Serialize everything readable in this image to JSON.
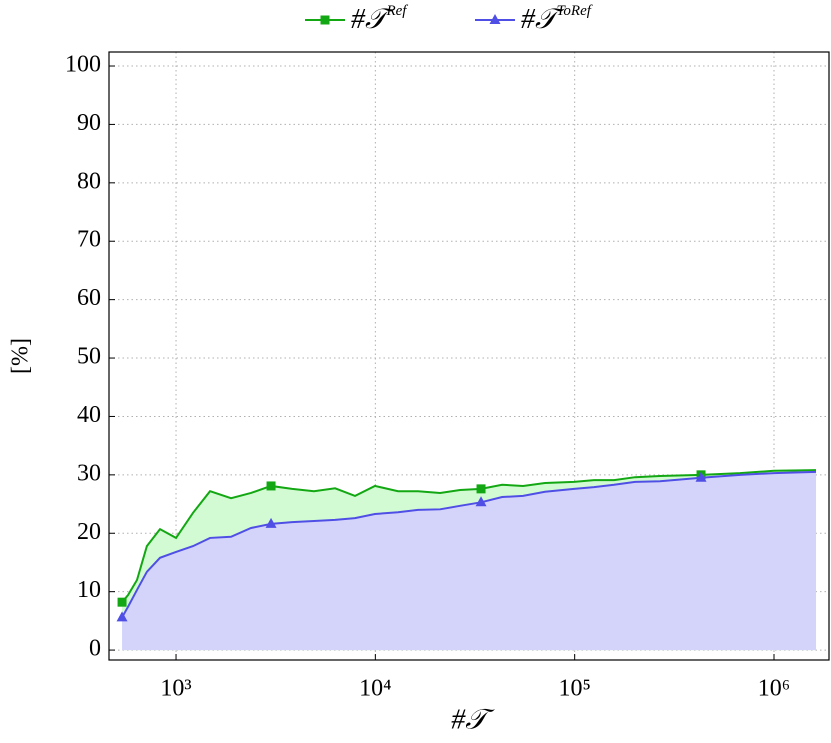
{
  "chart_data": {
    "type": "area_line",
    "x_label": "#𝒯",
    "y_label": "[%]",
    "xscale": "log",
    "grid": true,
    "legend": "top",
    "xlim": [
      461,
      1888000
    ],
    "ylim": [
      -1.7,
      102.4
    ],
    "xticks": [
      {
        "value": 1000,
        "label": "10³"
      },
      {
        "value": 10000,
        "label": "10⁴"
      },
      {
        "value": 100000,
        "label": "10⁵"
      },
      {
        "value": 1000000,
        "label": "10⁶"
      }
    ],
    "yticks": [
      0,
      10,
      20,
      30,
      40,
      50,
      60,
      70,
      80,
      90,
      100
    ],
    "x": [
      536,
      574,
      637,
      714,
      831,
      1000,
      1217,
      1481,
      1888,
      2378,
      2997,
      3822,
      4921,
      6281,
      7907,
      9950,
      13000,
      16370,
      21130,
      26610,
      33900,
      43250,
      55080,
      71000,
      99300,
      125000,
      157700,
      200900,
      268000,
      430500,
      676000,
      1000000,
      1625000
    ],
    "series": [
      {
        "name": "#𝒯",
        "name_sup": "Ref",
        "color": "#13a813",
        "fill": "#d3fbd3",
        "marker": "square",
        "marker_indices": [
          0,
          10,
          20,
          29
        ],
        "values": [
          8.2,
          9.4,
          12,
          17.8,
          20.7,
          19.2,
          23.5,
          27.2,
          26,
          26.9,
          28.1,
          27.6,
          27.2,
          27.7,
          26.4,
          28.1,
          27.2,
          27.2,
          26.9,
          27.4,
          27.6,
          28.3,
          28.1,
          28.6,
          28.8,
          29.1,
          29.1,
          29.6,
          29.8,
          30.0,
          30.3,
          30.7,
          30.8
        ]
      },
      {
        "name": "#𝒯",
        "name_sup": "ToRef",
        "color": "#4f4fe6",
        "fill": "#d4d4fb",
        "marker": "triangle",
        "marker_indices": [
          0,
          10,
          20,
          29
        ],
        "values": [
          5.6,
          7.4,
          10.3,
          13.4,
          15.8,
          16.8,
          17.8,
          19.2,
          19.4,
          20.9,
          21.6,
          21.9,
          22.1,
          22.3,
          22.6,
          23.3,
          23.6,
          24.0,
          24.1,
          24.7,
          25.3,
          26.2,
          26.4,
          27.1,
          27.6,
          27.9,
          28.3,
          28.8,
          28.9,
          29.5,
          30.0,
          30.3,
          30.5
        ]
      }
    ]
  }
}
